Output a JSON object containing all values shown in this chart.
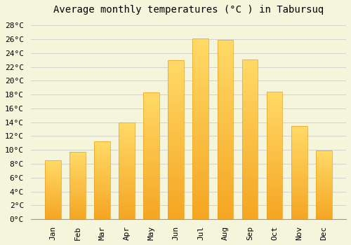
{
  "title": "Average monthly temperatures (°C ) in Tabursuq",
  "months": [
    "Jan",
    "Feb",
    "Mar",
    "Apr",
    "May",
    "Jun",
    "Jul",
    "Aug",
    "Sep",
    "Oct",
    "Nov",
    "Dec"
  ],
  "temperatures": [
    8.5,
    9.7,
    11.2,
    14.0,
    18.3,
    23.0,
    26.1,
    25.9,
    23.1,
    18.4,
    13.5,
    9.9
  ],
  "bar_color_bottom": "#F5A623",
  "bar_color_top": "#FFD966",
  "bar_edge_color": "#E8A020",
  "ylim": [
    0,
    29
  ],
  "yticks": [
    0,
    2,
    4,
    6,
    8,
    10,
    12,
    14,
    16,
    18,
    20,
    22,
    24,
    26,
    28
  ],
  "background_color": "#F5F5DC",
  "plot_bg_color": "#F5F5DC",
  "grid_color": "#CCCCCC",
  "title_fontsize": 10,
  "tick_fontsize": 8,
  "font_family": "monospace",
  "bar_width": 0.65
}
